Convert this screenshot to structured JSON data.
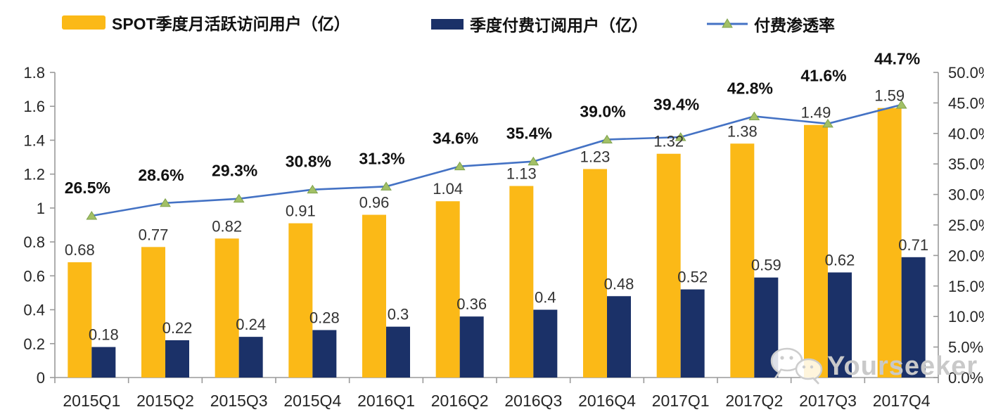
{
  "legend": [
    {
      "label": "SPOT季度月活跃访问用户（亿）",
      "color": "#FBB917",
      "type": "bar"
    },
    {
      "label": "季度付费订阅用户（亿）",
      "color": "#1B3168",
      "type": "bar"
    },
    {
      "label": "付费渗透率",
      "color": "#4472C4",
      "marker_color": "#A2C066",
      "type": "line"
    }
  ],
  "watermark": {
    "text": "Yourseeker",
    "icon": "wechat-icon"
  },
  "chart_data": {
    "type": "bar",
    "subtype": "combo-bar-line-dual-axis",
    "categories": [
      "2015Q1",
      "2015Q2",
      "2015Q3",
      "2015Q4",
      "2016Q1",
      "2016Q2",
      "2016Q3",
      "2016Q4",
      "2017Q1",
      "2017Q2",
      "2017Q3",
      "2017Q4"
    ],
    "series": [
      {
        "name": "SPOT季度月活跃访问用户（亿）",
        "type": "bar",
        "axis": "left",
        "color": "#FBB917",
        "values": [
          0.68,
          0.77,
          0.82,
          0.91,
          0.96,
          1.04,
          1.13,
          1.23,
          1.32,
          1.38,
          1.49,
          1.59
        ],
        "labels": [
          "0.68",
          "0.77",
          "0.82",
          "0.91",
          "0.96",
          "1.04",
          "1.13",
          "1.23",
          "1.32",
          "1.38",
          "1.49",
          "1.59"
        ]
      },
      {
        "name": "季度付费订阅用户（亿）",
        "type": "bar",
        "axis": "left",
        "color": "#1B3168",
        "values": [
          0.18,
          0.22,
          0.24,
          0.28,
          0.3,
          0.36,
          0.4,
          0.48,
          0.52,
          0.59,
          0.62,
          0.71
        ],
        "labels": [
          "0.18",
          "0.22",
          "0.24",
          "0.28",
          "0.3",
          "0.36",
          "0.4",
          "0.48",
          "0.52",
          "0.59",
          "0.62",
          "0.71"
        ]
      },
      {
        "name": "付费渗透率",
        "type": "line",
        "axis": "right",
        "color": "#4472C4",
        "marker": "triangle",
        "marker_color": "#A2C066",
        "values": [
          26.5,
          28.6,
          29.3,
          30.8,
          31.3,
          34.6,
          35.4,
          39.0,
          39.4,
          42.8,
          41.6,
          44.7
        ],
        "labels": [
          "26.5%",
          "28.6%",
          "29.3%",
          "30.8%",
          "31.3%",
          "34.6%",
          "35.4%",
          "39.0%",
          "39.4%",
          "42.8%",
          "41.6%",
          "44.7%"
        ]
      }
    ],
    "left_axis": {
      "min": 0,
      "max": 1.8,
      "step": 0.2,
      "ticks": [
        "0",
        "0.2",
        "0.4",
        "0.6",
        "0.8",
        "1",
        "1.2",
        "1.4",
        "1.6",
        "1.8"
      ]
    },
    "right_axis": {
      "min": 0,
      "max": 50,
      "step": 5,
      "ticks": [
        "0.0%",
        "5.0%",
        "10.0%",
        "15.0%",
        "20.0%",
        "25.0%",
        "30.0%",
        "35.0%",
        "40.0%",
        "45.0%",
        "50.0%"
      ]
    },
    "grid": false,
    "legend_position": "top",
    "title": "",
    "xlabel": "",
    "ylabel": ""
  },
  "colors": {
    "axis": "#9a9a9a",
    "tick_text": "#262626",
    "value_label": "#333333",
    "pct_label": "#111111"
  }
}
